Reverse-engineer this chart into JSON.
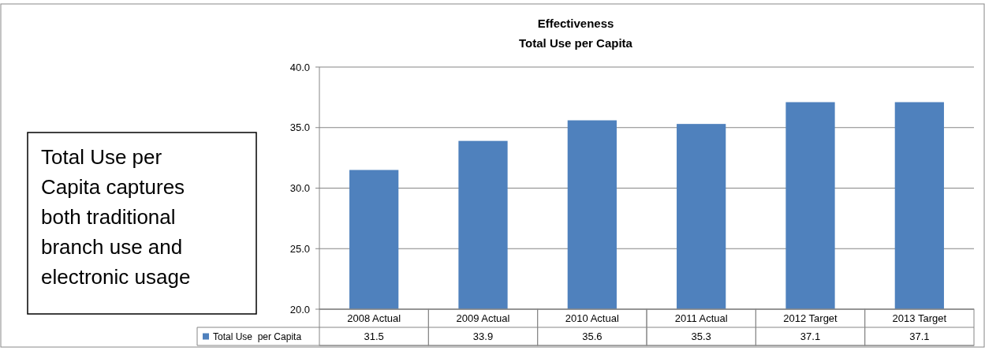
{
  "chart_data": {
    "type": "bar",
    "title": "Effectiveness",
    "subtitle": "Total Use per Capita",
    "categories": [
      "2008 Actual",
      "2009 Actual",
      "2010 Actual",
      "2011 Actual",
      "2012 Target",
      "2013 Target"
    ],
    "series": [
      {
        "name": "Total Use  per Capita",
        "color": "#4f81bd",
        "values": [
          31.5,
          33.9,
          35.6,
          35.3,
          37.1,
          37.1
        ]
      }
    ],
    "ylim": [
      20,
      40
    ],
    "yticks": [
      {
        "value": 20,
        "label": "20.0"
      },
      {
        "value": 25,
        "label": "25.0"
      },
      {
        "value": 30,
        "label": "30.0"
      },
      {
        "value": 35,
        "label": "35.0"
      },
      {
        "value": 40,
        "label": "40.0"
      }
    ],
    "grid": "y",
    "legend": "bottom",
    "data_labels": true,
    "annotations": [
      "Total Use per Capita captures both traditional branch use and electronic usage"
    ]
  }
}
